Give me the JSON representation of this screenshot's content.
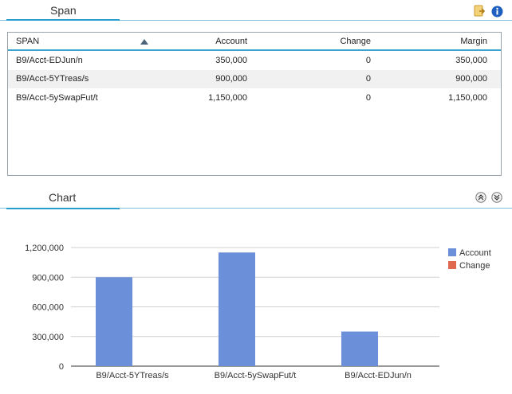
{
  "span_panel": {
    "title": "Span",
    "icons": [
      "export-icon",
      "info-icon"
    ]
  },
  "table": {
    "columns": [
      "SPAN",
      "Account",
      "Change",
      "Margin"
    ],
    "sort_column": "SPAN",
    "sort_direction": "ascending",
    "rows": [
      {
        "span": "B9/Acct-EDJun/n",
        "account": "350,000",
        "change": "0",
        "margin": "350,000"
      },
      {
        "span": "B9/Acct-5YTreas/s",
        "account": "900,000",
        "change": "0",
        "margin": "900,000"
      },
      {
        "span": "B9/Acct-5ySwapFut/t",
        "account": "1,150,000",
        "change": "0",
        "margin": "1,150,000"
      }
    ]
  },
  "chart_panel": {
    "title": "Chart",
    "icons": [
      "collapse-up-icon",
      "expand-down-icon"
    ]
  },
  "chart_data": {
    "type": "bar",
    "categories": [
      "B9/Acct-5YTreas/s",
      "B9/Acct-5ySwapFut/t",
      "B9/Acct-EDJun/n"
    ],
    "series": [
      {
        "name": "Account",
        "values": [
          900000,
          1150000,
          350000
        ],
        "color": "#6b8fd9"
      },
      {
        "name": "Change",
        "values": [
          0,
          0,
          0
        ],
        "color": "#e06a4f"
      }
    ],
    "yticks": [
      "0",
      "300,000",
      "600,000",
      "900,000",
      "1,200,000"
    ],
    "ylim": [
      0,
      1200000
    ],
    "grid": true,
    "legend_position": "right"
  }
}
